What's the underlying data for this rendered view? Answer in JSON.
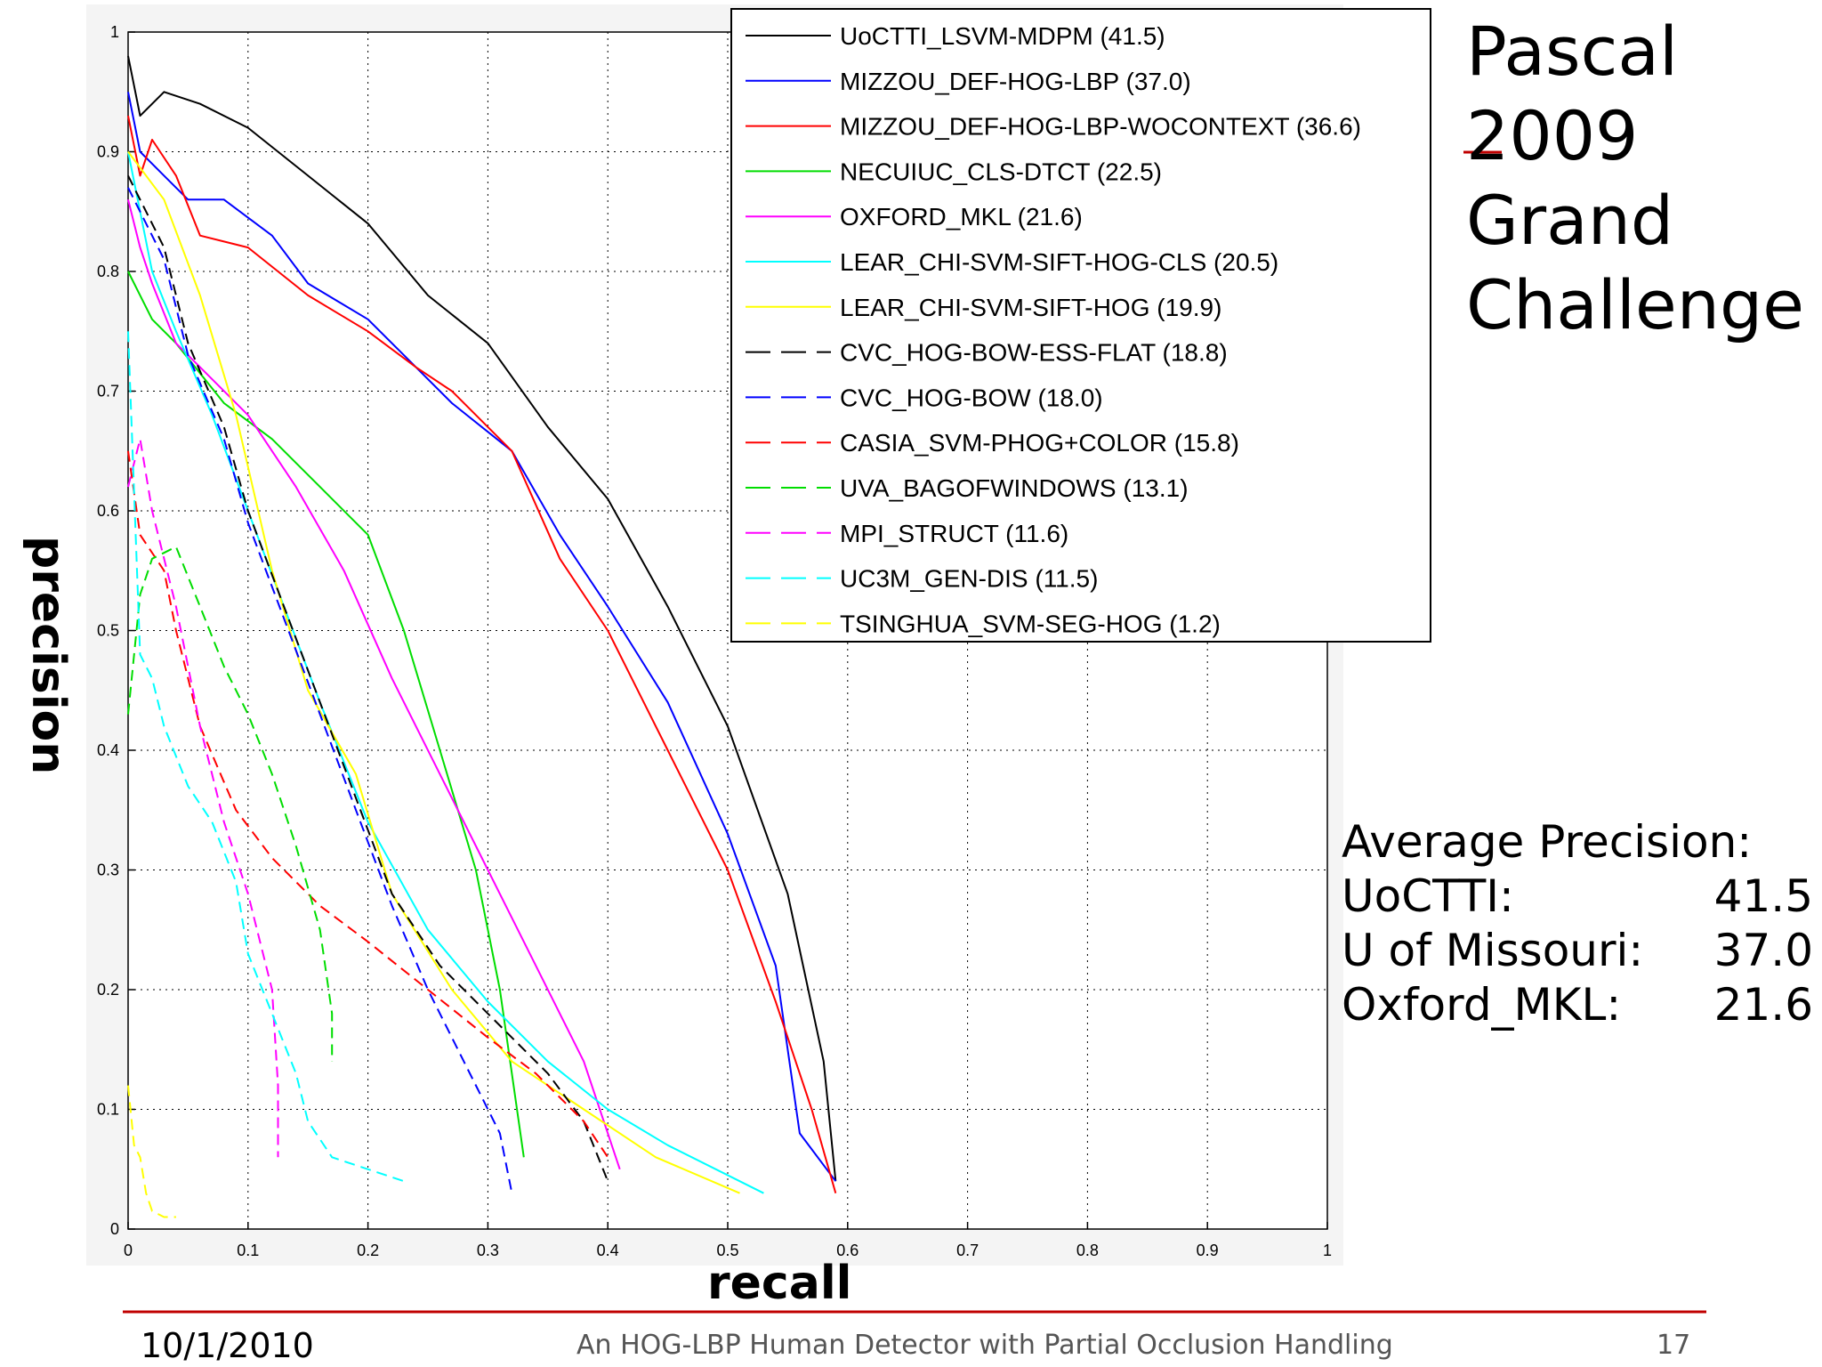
{
  "slide": {
    "title_lines": [
      "Pascal",
      "2009",
      "Grand",
      "Challenge"
    ],
    "ap_heading": "Average Precision:",
    "ap_rows": [
      {
        "name": "UoCTTI:",
        "value": "41.5"
      },
      {
        "name": "U of Missouri:",
        "value": "37.0"
      },
      {
        "name": "Oxford_MKL:",
        "value": "21.6"
      }
    ],
    "footer_date": "10/1/2010",
    "footer_title": "An HOG-LBP Human Detector with Partial Occlusion Handling",
    "page_number": "17",
    "colors": {
      "accent": "#c00000"
    }
  },
  "chart_data": {
    "type": "line",
    "xlabel": "recall",
    "ylabel": "precision",
    "xlim": [
      0,
      1
    ],
    "ylim": [
      0,
      1
    ],
    "x_ticks": [
      "0",
      "0.1",
      "0.2",
      "0.3",
      "0.4",
      "0.5",
      "0.6",
      "0.7",
      "0.8",
      "0.9",
      "1"
    ],
    "y_ticks": [
      "0",
      "0.1",
      "0.2",
      "0.3",
      "0.4",
      "0.5",
      "0.6",
      "0.7",
      "0.8",
      "0.9",
      "1"
    ],
    "grid": true,
    "legend_position": "top-right",
    "series": [
      {
        "name": "UoCTTI_LSVM-MDPM (41.5)",
        "color": "#000000",
        "dash": "solid",
        "points": [
          [
            0,
            0.98
          ],
          [
            0.01,
            0.93
          ],
          [
            0.03,
            0.95
          ],
          [
            0.06,
            0.94
          ],
          [
            0.1,
            0.92
          ],
          [
            0.15,
            0.88
          ],
          [
            0.2,
            0.84
          ],
          [
            0.25,
            0.78
          ],
          [
            0.3,
            0.74
          ],
          [
            0.35,
            0.67
          ],
          [
            0.4,
            0.61
          ],
          [
            0.45,
            0.52
          ],
          [
            0.5,
            0.42
          ],
          [
            0.55,
            0.28
          ],
          [
            0.58,
            0.14
          ],
          [
            0.59,
            0.04
          ]
        ]
      },
      {
        "name": "MIZZOU_DEF-HOG-LBP (37.0)",
        "color": "#0000ff",
        "dash": "solid",
        "points": [
          [
            0,
            0.95
          ],
          [
            0.01,
            0.9
          ],
          [
            0.03,
            0.88
          ],
          [
            0.05,
            0.86
          ],
          [
            0.08,
            0.86
          ],
          [
            0.12,
            0.83
          ],
          [
            0.15,
            0.79
          ],
          [
            0.2,
            0.76
          ],
          [
            0.23,
            0.73
          ],
          [
            0.27,
            0.69
          ],
          [
            0.32,
            0.65
          ],
          [
            0.36,
            0.58
          ],
          [
            0.4,
            0.52
          ],
          [
            0.45,
            0.44
          ],
          [
            0.5,
            0.33
          ],
          [
            0.54,
            0.22
          ],
          [
            0.56,
            0.08
          ],
          [
            0.59,
            0.04
          ]
        ]
      },
      {
        "name": "MIZZOU_DEF-HOG-LBP-WOCONTEXT (36.6)",
        "color": "#ff0000",
        "dash": "solid",
        "points": [
          [
            0,
            0.93
          ],
          [
            0.01,
            0.88
          ],
          [
            0.02,
            0.91
          ],
          [
            0.04,
            0.88
          ],
          [
            0.06,
            0.83
          ],
          [
            0.1,
            0.82
          ],
          [
            0.15,
            0.78
          ],
          [
            0.2,
            0.75
          ],
          [
            0.24,
            0.72
          ],
          [
            0.27,
            0.7
          ],
          [
            0.32,
            0.65
          ],
          [
            0.36,
            0.56
          ],
          [
            0.4,
            0.5
          ],
          [
            0.45,
            0.4
          ],
          [
            0.5,
            0.3
          ],
          [
            0.54,
            0.19
          ],
          [
            0.57,
            0.1
          ],
          [
            0.59,
            0.03
          ]
        ]
      },
      {
        "name": "NECUIUC_CLS-DTCT (22.5)",
        "color": "#00dd00",
        "dash": "solid",
        "points": [
          [
            0,
            0.8
          ],
          [
            0.01,
            0.78
          ],
          [
            0.02,
            0.76
          ],
          [
            0.04,
            0.74
          ],
          [
            0.08,
            0.69
          ],
          [
            0.12,
            0.66
          ],
          [
            0.16,
            0.62
          ],
          [
            0.2,
            0.58
          ],
          [
            0.23,
            0.5
          ],
          [
            0.26,
            0.4
          ],
          [
            0.29,
            0.3
          ],
          [
            0.31,
            0.2
          ],
          [
            0.33,
            0.06
          ]
        ]
      },
      {
        "name": "OXFORD_MKL (21.6)",
        "color": "#ff00ff",
        "dash": "solid",
        "points": [
          [
            0,
            0.86
          ],
          [
            0.01,
            0.82
          ],
          [
            0.02,
            0.79
          ],
          [
            0.04,
            0.74
          ],
          [
            0.06,
            0.72
          ],
          [
            0.1,
            0.68
          ],
          [
            0.14,
            0.62
          ],
          [
            0.18,
            0.55
          ],
          [
            0.22,
            0.46
          ],
          [
            0.26,
            0.38
          ],
          [
            0.3,
            0.3
          ],
          [
            0.34,
            0.22
          ],
          [
            0.38,
            0.14
          ],
          [
            0.41,
            0.05
          ]
        ]
      },
      {
        "name": "LEAR_CHI-SVM-SIFT-HOG-CLS (20.5)",
        "color": "#00ffff",
        "dash": "solid",
        "points": [
          [
            0,
            0.9
          ],
          [
            0.02,
            0.8
          ],
          [
            0.04,
            0.75
          ],
          [
            0.07,
            0.68
          ],
          [
            0.1,
            0.6
          ],
          [
            0.13,
            0.52
          ],
          [
            0.16,
            0.44
          ],
          [
            0.2,
            0.34
          ],
          [
            0.25,
            0.25
          ],
          [
            0.3,
            0.19
          ],
          [
            0.35,
            0.14
          ],
          [
            0.4,
            0.1
          ],
          [
            0.45,
            0.07
          ],
          [
            0.53,
            0.03
          ]
        ]
      },
      {
        "name": "LEAR_CHI-SVM-SIFT-HOG (19.9)",
        "color": "#ffff00",
        "dash": "solid",
        "points": [
          [
            0,
            0.9
          ],
          [
            0.03,
            0.86
          ],
          [
            0.06,
            0.78
          ],
          [
            0.09,
            0.68
          ],
          [
            0.12,
            0.55
          ],
          [
            0.15,
            0.45
          ],
          [
            0.19,
            0.38
          ],
          [
            0.22,
            0.28
          ],
          [
            0.27,
            0.2
          ],
          [
            0.32,
            0.14
          ],
          [
            0.38,
            0.1
          ],
          [
            0.44,
            0.06
          ],
          [
            0.51,
            0.03
          ]
        ]
      },
      {
        "name": "CVC_HOG-BOW-ESS-FLAT (18.8)",
        "color": "#000000",
        "dash": "dashed",
        "points": [
          [
            0,
            0.88
          ],
          [
            0.03,
            0.82
          ],
          [
            0.05,
            0.74
          ],
          [
            0.08,
            0.67
          ],
          [
            0.1,
            0.6
          ],
          [
            0.13,
            0.52
          ],
          [
            0.16,
            0.44
          ],
          [
            0.19,
            0.36
          ],
          [
            0.22,
            0.28
          ],
          [
            0.26,
            0.22
          ],
          [
            0.3,
            0.18
          ],
          [
            0.35,
            0.13
          ],
          [
            0.38,
            0.09
          ],
          [
            0.4,
            0.04
          ]
        ]
      },
      {
        "name": "CVC_HOG-BOW (18.0)",
        "color": "#0000ff",
        "dash": "dashed",
        "points": [
          [
            0,
            0.87
          ],
          [
            0.03,
            0.81
          ],
          [
            0.05,
            0.73
          ],
          [
            0.08,
            0.66
          ],
          [
            0.1,
            0.59
          ],
          [
            0.13,
            0.51
          ],
          [
            0.16,
            0.43
          ],
          [
            0.19,
            0.35
          ],
          [
            0.22,
            0.27
          ],
          [
            0.25,
            0.2
          ],
          [
            0.28,
            0.14
          ],
          [
            0.31,
            0.08
          ],
          [
            0.32,
            0.03
          ]
        ]
      },
      {
        "name": "CASIA_SVM-PHOG+COLOR (15.8)",
        "color": "#ff0000",
        "dash": "dashed",
        "points": [
          [
            0,
            0.65
          ],
          [
            0.01,
            0.58
          ],
          [
            0.03,
            0.55
          ],
          [
            0.04,
            0.5
          ],
          [
            0.06,
            0.42
          ],
          [
            0.09,
            0.35
          ],
          [
            0.12,
            0.31
          ],
          [
            0.16,
            0.27
          ],
          [
            0.2,
            0.24
          ],
          [
            0.25,
            0.2
          ],
          [
            0.3,
            0.16
          ],
          [
            0.34,
            0.13
          ],
          [
            0.38,
            0.09
          ],
          [
            0.4,
            0.06
          ]
        ]
      },
      {
        "name": "UVA_BAGOFWINDOWS (13.1)",
        "color": "#00dd00",
        "dash": "dashed",
        "points": [
          [
            0,
            0.43
          ],
          [
            0.01,
            0.53
          ],
          [
            0.02,
            0.56
          ],
          [
            0.04,
            0.57
          ],
          [
            0.06,
            0.52
          ],
          [
            0.08,
            0.47
          ],
          [
            0.1,
            0.43
          ],
          [
            0.12,
            0.38
          ],
          [
            0.14,
            0.32
          ],
          [
            0.16,
            0.25
          ],
          [
            0.17,
            0.18
          ],
          [
            0.17,
            0.14
          ]
        ]
      },
      {
        "name": "MPI_STRUCT (11.6)",
        "color": "#ff00ff",
        "dash": "dashed",
        "points": [
          [
            0,
            0.62
          ],
          [
            0.01,
            0.66
          ],
          [
            0.02,
            0.6
          ],
          [
            0.04,
            0.52
          ],
          [
            0.06,
            0.42
          ],
          [
            0.08,
            0.34
          ],
          [
            0.1,
            0.28
          ],
          [
            0.12,
            0.2
          ],
          [
            0.125,
            0.12
          ],
          [
            0.125,
            0.06
          ]
        ]
      },
      {
        "name": "UC3M_GEN-DIS (11.5)",
        "color": "#00ffff",
        "dash": "dashed",
        "points": [
          [
            0,
            0.75
          ],
          [
            0.01,
            0.48
          ],
          [
            0.02,
            0.46
          ],
          [
            0.03,
            0.42
          ],
          [
            0.05,
            0.37
          ],
          [
            0.07,
            0.34
          ],
          [
            0.09,
            0.29
          ],
          [
            0.1,
            0.23
          ],
          [
            0.12,
            0.18
          ],
          [
            0.14,
            0.13
          ],
          [
            0.15,
            0.09
          ],
          [
            0.17,
            0.06
          ],
          [
            0.2,
            0.05
          ],
          [
            0.23,
            0.04
          ]
        ]
      },
      {
        "name": "TSINGHUA_SVM-SEG-HOG (1.2)",
        "color": "#ffff00",
        "dash": "dashed",
        "points": [
          [
            0,
            0.12
          ],
          [
            0.005,
            0.07
          ],
          [
            0.01,
            0.06
          ],
          [
            0.015,
            0.03
          ],
          [
            0.02,
            0.015
          ],
          [
            0.03,
            0.01
          ],
          [
            0.04,
            0.01
          ]
        ]
      }
    ]
  }
}
